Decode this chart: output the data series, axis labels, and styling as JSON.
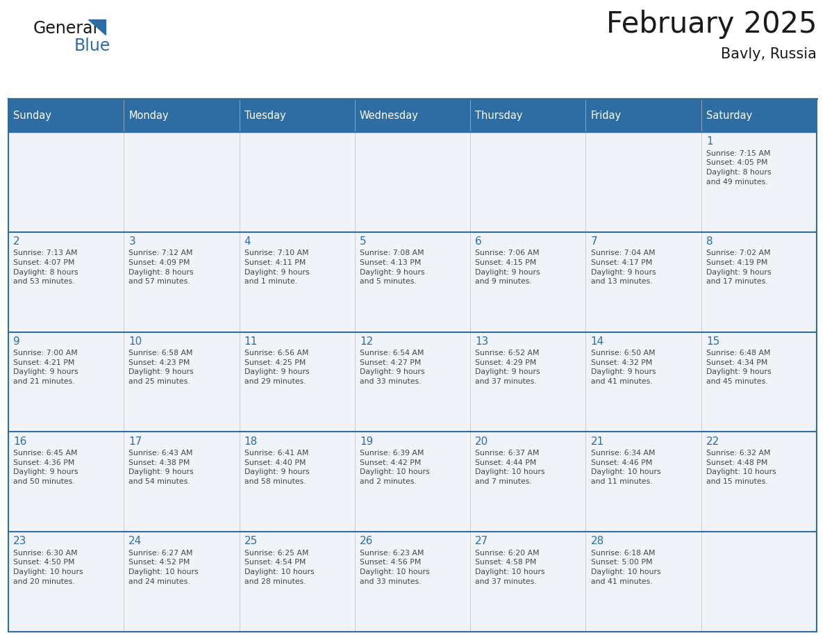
{
  "title": "February 2025",
  "subtitle": "Bavly, Russia",
  "days_of_week": [
    "Sunday",
    "Monday",
    "Tuesday",
    "Wednesday",
    "Thursday",
    "Friday",
    "Saturday"
  ],
  "header_bg": "#2d6da3",
  "header_text": "#ffffff",
  "cell_bg": "#f0f4f8",
  "border_color": "#2d6da3",
  "day_number_color": "#2d6da3",
  "text_color": "#444444",
  "calendar_data": [
    [
      null,
      null,
      null,
      null,
      null,
      null,
      {
        "day": 1,
        "sunrise": "7:15 AM",
        "sunset": "4:05 PM",
        "daylight": "8 hours\nand 49 minutes."
      }
    ],
    [
      {
        "day": 2,
        "sunrise": "7:13 AM",
        "sunset": "4:07 PM",
        "daylight": "8 hours\nand 53 minutes."
      },
      {
        "day": 3,
        "sunrise": "7:12 AM",
        "sunset": "4:09 PM",
        "daylight": "8 hours\nand 57 minutes."
      },
      {
        "day": 4,
        "sunrise": "7:10 AM",
        "sunset": "4:11 PM",
        "daylight": "9 hours\nand 1 minute."
      },
      {
        "day": 5,
        "sunrise": "7:08 AM",
        "sunset": "4:13 PM",
        "daylight": "9 hours\nand 5 minutes."
      },
      {
        "day": 6,
        "sunrise": "7:06 AM",
        "sunset": "4:15 PM",
        "daylight": "9 hours\nand 9 minutes."
      },
      {
        "day": 7,
        "sunrise": "7:04 AM",
        "sunset": "4:17 PM",
        "daylight": "9 hours\nand 13 minutes."
      },
      {
        "day": 8,
        "sunrise": "7:02 AM",
        "sunset": "4:19 PM",
        "daylight": "9 hours\nand 17 minutes."
      }
    ],
    [
      {
        "day": 9,
        "sunrise": "7:00 AM",
        "sunset": "4:21 PM",
        "daylight": "9 hours\nand 21 minutes."
      },
      {
        "day": 10,
        "sunrise": "6:58 AM",
        "sunset": "4:23 PM",
        "daylight": "9 hours\nand 25 minutes."
      },
      {
        "day": 11,
        "sunrise": "6:56 AM",
        "sunset": "4:25 PM",
        "daylight": "9 hours\nand 29 minutes."
      },
      {
        "day": 12,
        "sunrise": "6:54 AM",
        "sunset": "4:27 PM",
        "daylight": "9 hours\nand 33 minutes."
      },
      {
        "day": 13,
        "sunrise": "6:52 AM",
        "sunset": "4:29 PM",
        "daylight": "9 hours\nand 37 minutes."
      },
      {
        "day": 14,
        "sunrise": "6:50 AM",
        "sunset": "4:32 PM",
        "daylight": "9 hours\nand 41 minutes."
      },
      {
        "day": 15,
        "sunrise": "6:48 AM",
        "sunset": "4:34 PM",
        "daylight": "9 hours\nand 45 minutes."
      }
    ],
    [
      {
        "day": 16,
        "sunrise": "6:45 AM",
        "sunset": "4:36 PM",
        "daylight": "9 hours\nand 50 minutes."
      },
      {
        "day": 17,
        "sunrise": "6:43 AM",
        "sunset": "4:38 PM",
        "daylight": "9 hours\nand 54 minutes."
      },
      {
        "day": 18,
        "sunrise": "6:41 AM",
        "sunset": "4:40 PM",
        "daylight": "9 hours\nand 58 minutes."
      },
      {
        "day": 19,
        "sunrise": "6:39 AM",
        "sunset": "4:42 PM",
        "daylight": "10 hours\nand 2 minutes."
      },
      {
        "day": 20,
        "sunrise": "6:37 AM",
        "sunset": "4:44 PM",
        "daylight": "10 hours\nand 7 minutes."
      },
      {
        "day": 21,
        "sunrise": "6:34 AM",
        "sunset": "4:46 PM",
        "daylight": "10 hours\nand 11 minutes."
      },
      {
        "day": 22,
        "sunrise": "6:32 AM",
        "sunset": "4:48 PM",
        "daylight": "10 hours\nand 15 minutes."
      }
    ],
    [
      {
        "day": 23,
        "sunrise": "6:30 AM",
        "sunset": "4:50 PM",
        "daylight": "10 hours\nand 20 minutes."
      },
      {
        "day": 24,
        "sunrise": "6:27 AM",
        "sunset": "4:52 PM",
        "daylight": "10 hours\nand 24 minutes."
      },
      {
        "day": 25,
        "sunrise": "6:25 AM",
        "sunset": "4:54 PM",
        "daylight": "10 hours\nand 28 minutes."
      },
      {
        "day": 26,
        "sunrise": "6:23 AM",
        "sunset": "4:56 PM",
        "daylight": "10 hours\nand 33 minutes."
      },
      {
        "day": 27,
        "sunrise": "6:20 AM",
        "sunset": "4:58 PM",
        "daylight": "10 hours\nand 37 minutes."
      },
      {
        "day": 28,
        "sunrise": "6:18 AM",
        "sunset": "5:00 PM",
        "daylight": "10 hours\nand 41 minutes."
      },
      null
    ]
  ],
  "logo_text_general": "General",
  "logo_text_blue": "Blue",
  "logo_color_general": "#1a1a1a",
  "logo_color_blue": "#2d6da3"
}
